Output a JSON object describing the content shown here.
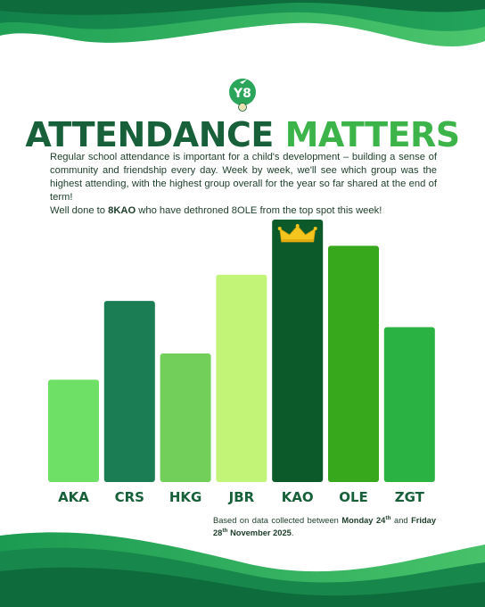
{
  "header": {
    "badge_text": "Y8",
    "title_part1": "ATTENDANCE",
    "title_part2": "MATTERS"
  },
  "intro": {
    "paragraph": "Regular school attendance is important for a child's development – building a sense of community and friendship every day. Week by week, we'll see which group was the highest attending, with the highest group overall for the year so far shared at the end of term!",
    "shoutout_prefix": "Well done to ",
    "shoutout_group": "8KAO",
    "shoutout_suffix": " who have dethroned 8OLE from the top spot this week!"
  },
  "chart_data": {
    "type": "bar",
    "categories": [
      "AKA",
      "CRS",
      "HKG",
      "JBR",
      "KAO",
      "OLE",
      "ZGT"
    ],
    "values": [
      39,
      69,
      49,
      79,
      100,
      90,
      59
    ],
    "ylim": [
      0,
      100
    ],
    "axes_visible": false,
    "grid": false,
    "highlight": {
      "category": "KAO",
      "marker": "crown-icon"
    },
    "colors": [
      "#6fe066",
      "#1a7d53",
      "#72d05a",
      "#c2f477",
      "#0c5a2a",
      "#37a71b",
      "#2ab242"
    ]
  },
  "footnote": {
    "prefix": "Based on data collected between ",
    "start_day": "Monday 24",
    "start_suffix": "th",
    "connector": " and ",
    "end_day": "Friday 28",
    "end_suffix": "th",
    "end_rest": " November 2025",
    "end_punct": "."
  },
  "theme": {
    "dark_green": "#17603a",
    "bright_green": "#3cb449",
    "text": "#1c3d29",
    "gold": "#f4c51c"
  }
}
